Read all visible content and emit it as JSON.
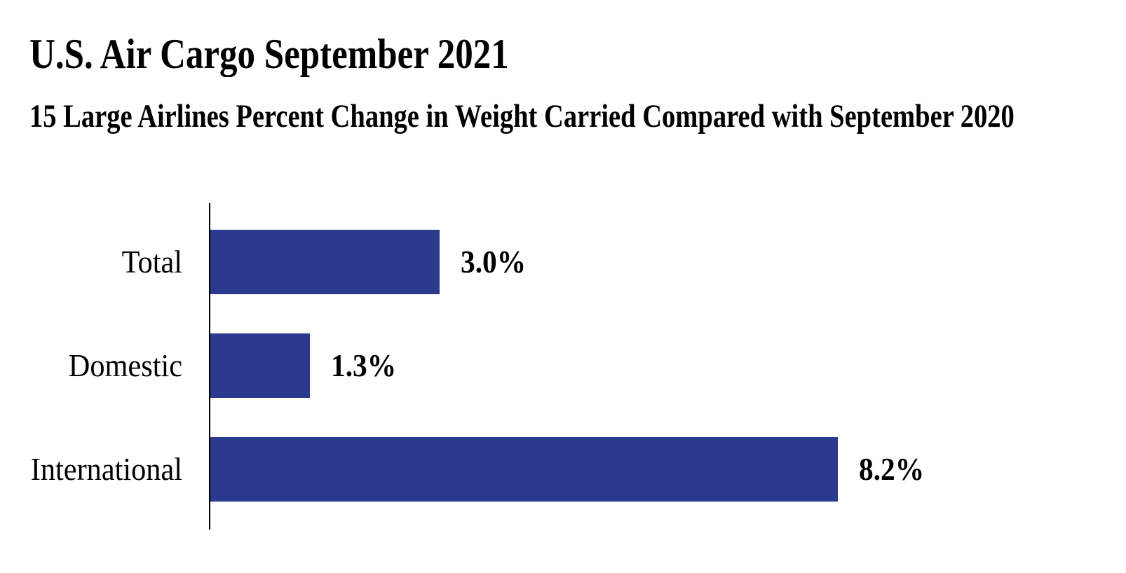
{
  "header": {
    "title": "U.S. Air Cargo September 2021",
    "subtitle": "15 Large Airlines Percent Change in Weight Carried Compared with September 2020"
  },
  "chart_data": {
    "type": "bar",
    "orientation": "horizontal",
    "title": "U.S. Air Cargo September 2021",
    "subtitle": "15 Large Airlines Percent Change in Weight Carried Compared with September 2020",
    "categories": [
      "Total",
      "Domestic",
      "International"
    ],
    "values": [
      3.0,
      1.3,
      8.2
    ],
    "value_labels": [
      "3.0%",
      "1.3%",
      "8.2%"
    ],
    "unit": "percent change",
    "xlabel": "",
    "ylabel": "",
    "xlim": [
      0,
      8.2
    ],
    "grid": false,
    "legend": false,
    "colors": {
      "bar": "#2B3A8F",
      "axis": "#000000",
      "text": "#000000",
      "background": "#FFFFFF"
    }
  }
}
